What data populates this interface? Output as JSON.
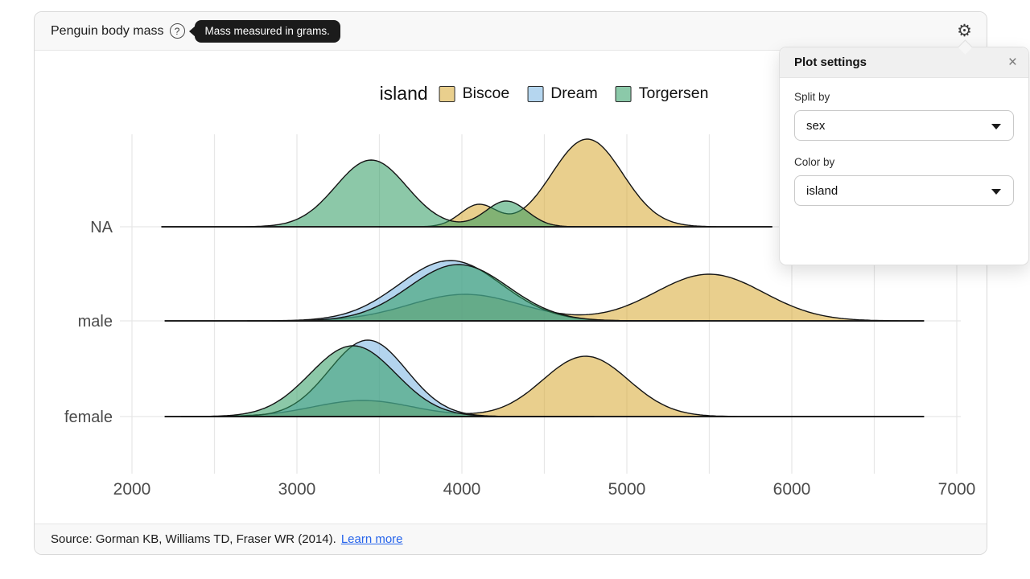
{
  "header": {
    "title": "Penguin body mass",
    "help_icon": "?",
    "help_tooltip": "Mass measured in grams."
  },
  "footer": {
    "source_text": "Source: Gorman KB, Williams TD, Fraser WR (2014).",
    "link_label": "Learn more"
  },
  "settings_panel": {
    "title": "Plot settings",
    "close_label": "×",
    "fields": [
      {
        "label": "Split by",
        "value": "sex"
      },
      {
        "label": "Color by",
        "value": "island"
      }
    ]
  },
  "chart_data": {
    "type": "area",
    "subtype": "ridgeline-density",
    "x_domain": [
      2000,
      7000
    ],
    "x_ticks": [
      2000,
      3000,
      4000,
      5000,
      6000,
      7000
    ],
    "x_grid_step": 500,
    "grid": true,
    "legend": {
      "title": "island",
      "position": "top-center",
      "entries": [
        {
          "label": "Biscoe",
          "color": "#e9cf8d"
        },
        {
          "label": "Dream",
          "color": "#b5d6ef"
        },
        {
          "label": "Torgersen",
          "color": "#8bc9a9"
        }
      ]
    },
    "series_fills": {
      "Biscoe": "#d7a72f",
      "Dream": "#75b1e0",
      "Torgersen": "#2e9b61"
    },
    "fill_opacity": 0.55,
    "stroke_color": "#141414",
    "rows": [
      {
        "label": "NA",
        "baseline_extent": [
          2180,
          5880
        ],
        "series": [
          {
            "name": "Biscoe",
            "extent": [
              3500,
              5880
            ],
            "components": [
              {
                "mean": 4100,
                "sd": 110,
                "peak": 27
              },
              {
                "mean": 4760,
                "sd": 215,
                "peak": 109
              }
            ]
          },
          {
            "name": "Torgersen",
            "extent": [
              2180,
              5250
            ],
            "components": [
              {
                "mean": 3450,
                "sd": 215,
                "peak": 83
              },
              {
                "mean": 4270,
                "sd": 125,
                "peak": 32
              }
            ]
          }
        ]
      },
      {
        "label": "male",
        "baseline_extent": [
          2200,
          6800
        ],
        "series": [
          {
            "name": "Biscoe",
            "extent": [
              2850,
              6800
            ],
            "components": [
              {
                "mean": 4020,
                "sd": 340,
                "peak": 33
              },
              {
                "mean": 5500,
                "sd": 330,
                "peak": 58
              }
            ]
          },
          {
            "name": "Dream",
            "extent": [
              2200,
              5500
            ],
            "components": [
              {
                "mean": 3930,
                "sd": 310,
                "peak": 75
              }
            ]
          },
          {
            "name": "Torgersen",
            "extent": [
              2700,
              5400
            ],
            "components": [
              {
                "mean": 3980,
                "sd": 300,
                "peak": 70
              }
            ]
          }
        ]
      },
      {
        "label": "female",
        "baseline_extent": [
          2200,
          6800
        ],
        "series": [
          {
            "name": "Biscoe",
            "extent": [
              2600,
              6800
            ],
            "components": [
              {
                "mean": 3400,
                "sd": 300,
                "peak": 20
              },
              {
                "mean": 4750,
                "sd": 260,
                "peak": 75
              }
            ]
          },
          {
            "name": "Dream",
            "extent": [
              2200,
              4800
            ],
            "components": [
              {
                "mean": 3430,
                "sd": 235,
                "peak": 95
              }
            ]
          },
          {
            "name": "Torgersen",
            "extent": [
              2300,
              4700
            ],
            "components": [
              {
                "mean": 3340,
                "sd": 260,
                "peak": 88
              }
            ]
          }
        ]
      }
    ]
  }
}
